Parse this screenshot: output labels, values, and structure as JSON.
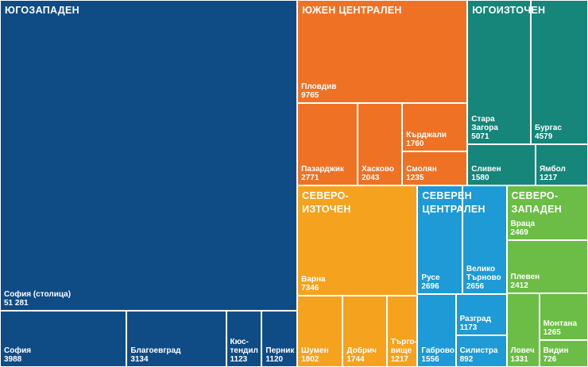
{
  "chart_data": {
    "type": "treemap",
    "groups": [
      {
        "name": "ЮГОЗАПАДЕН",
        "color": "#0f4c86",
        "categories": [
          "София (столица)",
          "София",
          "Благоевград",
          "Кюс-\nтендил",
          "Перник"
        ],
        "values": [
          51281,
          3988,
          3134,
          1123,
          1120
        ],
        "value_labels": [
          "51 281",
          "3988",
          "3134",
          "1123",
          "1120"
        ]
      },
      {
        "name": "ЮЖЕН ЦЕНТРАЛЕН",
        "color": "#ef7224",
        "categories": [
          "Пловдив",
          "Пазарджик",
          "Хасково",
          "Кърджали",
          "Смолян"
        ],
        "values": [
          9765,
          2771,
          2043,
          1760,
          1235
        ]
      },
      {
        "name": "ЮГОИЗТОЧЕН",
        "color": "#16857a",
        "categories": [
          "Стара\nЗагора",
          "Бургас",
          "Сливен",
          "Ямбол"
        ],
        "values": [
          5071,
          4579,
          1580,
          1217
        ]
      },
      {
        "name": "СЕВЕРО-\nИЗТОЧЕН",
        "color": "#f5a21e",
        "categories": [
          "Варна",
          "Шумен",
          "Добрич",
          "Търго-\nвище"
        ],
        "values": [
          7346,
          1802,
          1744,
          1217
        ]
      },
      {
        "name": "СЕВЕРЕН\nЦЕНТРАЛЕН",
        "color": "#1e9ad6",
        "categories": [
          "Русе",
          "Велико\nТърново",
          "Габрово",
          "Разград",
          "Силистра"
        ],
        "values": [
          2696,
          2656,
          1556,
          1173,
          892
        ]
      },
      {
        "name": "СЕВЕРО-\nЗАПАДЕН",
        "color": "#6bbd45",
        "categories": [
          "Враца",
          "Плевен",
          "Ловеч",
          "Монтана",
          "Видин"
        ],
        "values": [
          2469,
          2412,
          1331,
          1265,
          726
        ]
      }
    ]
  }
}
